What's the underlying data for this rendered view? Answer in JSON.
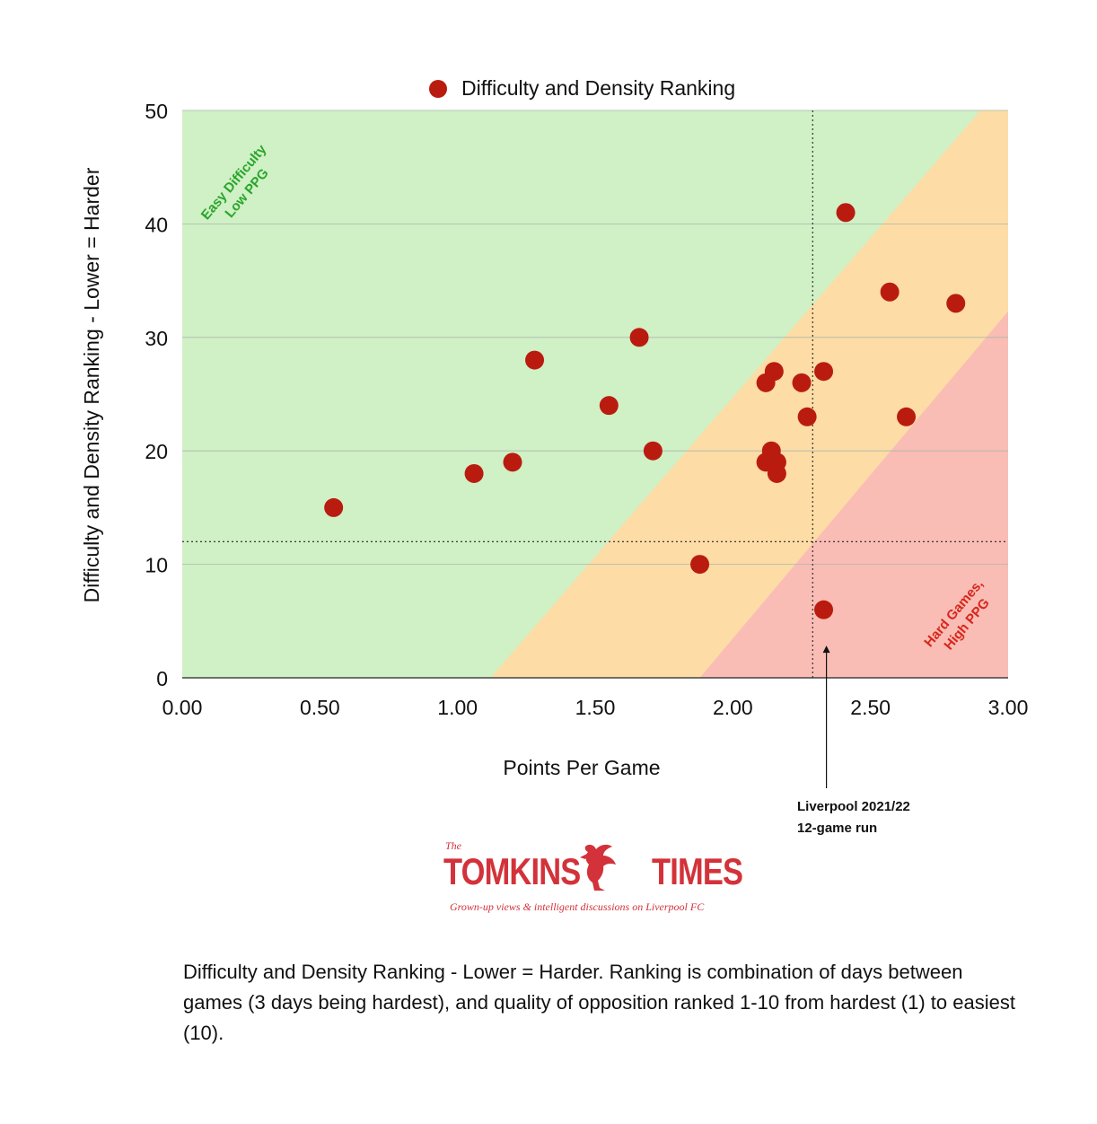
{
  "chart_data": {
    "type": "scatter",
    "title": "",
    "xlabel": "Points Per Game",
    "ylabel": "Difficulty and Density Ranking - Lower = Harder",
    "xlim": [
      0,
      3
    ],
    "ylim": [
      0,
      50
    ],
    "x_ticks": [
      "0.00",
      "0.50",
      "1.00",
      "1.50",
      "2.00",
      "2.50",
      "3.00"
    ],
    "y_ticks": [
      "0",
      "10",
      "20",
      "30",
      "40",
      "50"
    ],
    "grid": "horizontal",
    "legend_position": "top-center",
    "series": [
      {
        "name": "Difficulty and Density Ranking",
        "color": "#b91c0f",
        "points": [
          {
            "x": 0.55,
            "y": 15
          },
          {
            "x": 1.06,
            "y": 18
          },
          {
            "x": 1.2,
            "y": 19
          },
          {
            "x": 1.28,
            "y": 28
          },
          {
            "x": 1.55,
            "y": 24
          },
          {
            "x": 1.66,
            "y": 30
          },
          {
            "x": 1.71,
            "y": 20
          },
          {
            "x": 1.88,
            "y": 10
          },
          {
            "x": 2.12,
            "y": 26
          },
          {
            "x": 2.12,
            "y": 19
          },
          {
            "x": 2.14,
            "y": 20
          },
          {
            "x": 2.15,
            "y": 27
          },
          {
            "x": 2.16,
            "y": 19
          },
          {
            "x": 2.16,
            "y": 18
          },
          {
            "x": 2.25,
            "y": 26
          },
          {
            "x": 2.27,
            "y": 23
          },
          {
            "x": 2.33,
            "y": 27
          },
          {
            "x": 2.33,
            "y": 6
          },
          {
            "x": 2.41,
            "y": 41
          },
          {
            "x": 2.57,
            "y": 34
          },
          {
            "x": 2.63,
            "y": 23
          },
          {
            "x": 2.81,
            "y": 33
          }
        ]
      }
    ],
    "reference_lines": {
      "x": 2.29,
      "y": 12
    },
    "zones": [
      {
        "name": "easy",
        "color": "#d0f0c6",
        "label_lines": [
          "Easy Difficulty",
          "Low PPG"
        ],
        "label_color": "#2aa52a"
      },
      {
        "name": "medium",
        "color": "#fddca6"
      },
      {
        "name": "hard",
        "color": "#f9bdb5",
        "label_lines": [
          "Hard Games,",
          "High PPG"
        ],
        "label_color": "#d7261c"
      }
    ],
    "zone_boundaries": [
      {
        "from": {
          "x": 1.12,
          "y": 0
        },
        "to": {
          "x": 2.9,
          "y": 50
        }
      },
      {
        "from": {
          "x": 1.88,
          "y": 0
        },
        "to": {
          "x": 3.0,
          "y": 32.3
        }
      }
    ],
    "annotation": {
      "lines": [
        "Liverpool  2021/22",
        "12-game run"
      ],
      "target": {
        "x": 2.34,
        "y": 3
      }
    }
  },
  "logo": {
    "the": "The",
    "word_left": "TOMKINS",
    "word_right": "TIMES",
    "tagline": "Grown-up views & intelligent discussions on Liverpool FC",
    "color": "#d3323a"
  },
  "caption": "Difficulty and Density Ranking - Lower = Harder. Ranking is combination of days between games (3 days being hardest), and quality of opposition ranked 1-10 from hardest (1) to easiest (10)."
}
